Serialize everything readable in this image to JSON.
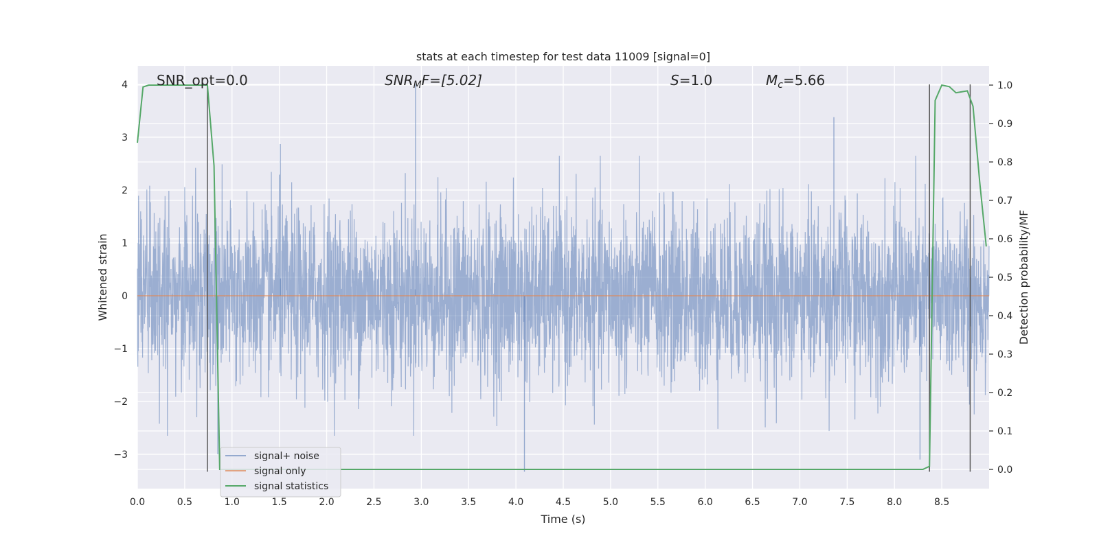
{
  "chart_data": {
    "type": "line",
    "title": "stats at each timestep for test data 11009 [signal=0]",
    "xlabel": "Time (s)",
    "ylabel": "Whitened strain",
    "y2label": "Detection probability/MF",
    "xlim": [
      0.0,
      9.0
    ],
    "ylim": [
      -3.65,
      4.35
    ],
    "y2lim": [
      -0.05,
      1.05
    ],
    "xticks": [
      0.0,
      0.5,
      1.0,
      1.5,
      2.0,
      2.5,
      3.0,
      3.5,
      4.0,
      4.5,
      5.0,
      5.5,
      6.0,
      6.5,
      7.0,
      7.5,
      8.0,
      8.5
    ],
    "xtick_labels": [
      "0.0",
      "0.5",
      "1.0",
      "1.5",
      "2.0",
      "2.5",
      "3.0",
      "3.5",
      "4.0",
      "4.5",
      "5.0",
      "5.5",
      "6.0",
      "6.5",
      "7.0",
      "7.5",
      "8.0",
      "8.5"
    ],
    "yticks": [
      -3,
      -2,
      -1,
      0,
      1,
      2,
      3,
      4
    ],
    "ytick_labels": [
      "−3",
      "−2",
      "−1",
      "0",
      "1",
      "2",
      "3",
      "4"
    ],
    "y2ticks": [
      0.0,
      0.1,
      0.2,
      0.3,
      0.4,
      0.5,
      0.6,
      0.7,
      0.8,
      0.9,
      1.0
    ],
    "y2tick_labels": [
      "0.0",
      "0.1",
      "0.2",
      "0.3",
      "0.4",
      "0.5",
      "0.6",
      "0.7",
      "0.8",
      "0.9",
      "1.0"
    ],
    "grid": true,
    "legend_placement": "lower-left",
    "annotations": {
      "snr_opt": "SNR_opt=0.0",
      "snr_mf_sym": "SNR",
      "snr_mf_sub": "M",
      "snr_mf_rest": "F=[5.02]",
      "s_sym": "S",
      "s_rest": "=1.0",
      "mc_sym": "M",
      "mc_sub": "c",
      "mc_rest": "=5.66"
    },
    "series": [
      {
        "name": "signal+ noise",
        "color": "#4c72b0",
        "style": "noise",
        "x_range": [
          0.0,
          9.0
        ],
        "envelope_notable_peaks": [
          {
            "x": 2.94,
            "y": 4.0
          },
          {
            "x": 7.36,
            "y": 3.38
          },
          {
            "x": 1.51,
            "y": 2.87
          },
          {
            "x": 4.09,
            "y": -3.33
          },
          {
            "x": 8.27,
            "y": -3.1
          },
          {
            "x": 0.85,
            "y": -3.0
          }
        ]
      },
      {
        "name": "signal only",
        "color": "#dd8452",
        "axis": "left",
        "x": [
          0.0,
          9.0
        ],
        "y": [
          0.0,
          0.0
        ]
      },
      {
        "name": "signal statistics",
        "color": "#55a868",
        "axis": "right",
        "x": [
          0.0,
          0.06,
          0.12,
          0.2,
          0.3,
          0.4,
          0.5,
          0.6,
          0.7,
          0.74,
          0.81,
          0.87,
          0.95,
          2.0,
          4.0,
          6.0,
          8.0,
          8.3,
          8.37,
          8.43,
          8.5,
          8.58,
          8.65,
          8.77,
          8.83,
          8.9,
          8.97
        ],
        "y": [
          0.85,
          0.995,
          1.0,
          1.0,
          1.0,
          1.0,
          1.0,
          1.0,
          1.0,
          1.0,
          0.79,
          0.0,
          0.0,
          0.0,
          0.0,
          0.0,
          0.0,
          0.0,
          0.008,
          0.96,
          1.0,
          0.996,
          0.98,
          0.985,
          0.945,
          0.75,
          0.58
        ]
      }
    ],
    "vertical_lines": [
      {
        "x": 0.74,
        "ymin": -3.33,
        "ymax": 4.0
      },
      {
        "x": 8.37,
        "ymin": -3.33,
        "ymax": 4.0
      },
      {
        "x": 8.8,
        "ymin": -3.33,
        "ymax": 4.0
      }
    ],
    "legend": [
      {
        "label": "signal+ noise",
        "color": "#4c72b0"
      },
      {
        "label": "signal only",
        "color": "#dd8452"
      },
      {
        "label": "signal statistics",
        "color": "#55a868"
      }
    ]
  }
}
